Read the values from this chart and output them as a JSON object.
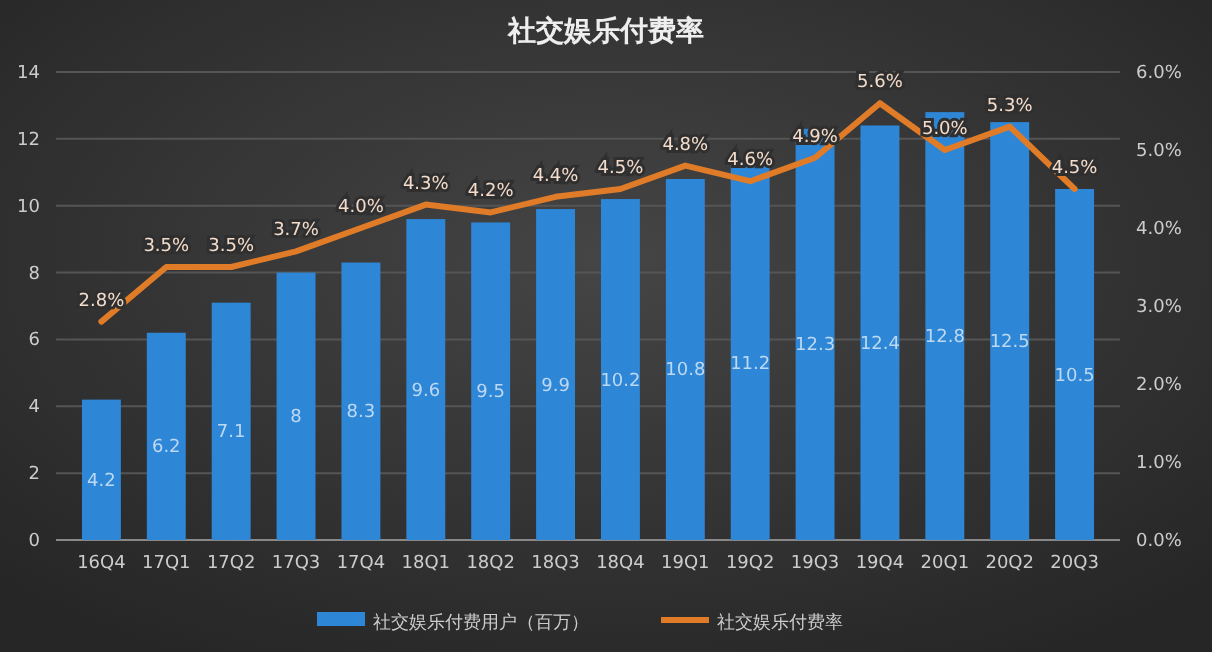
{
  "chart_data": {
    "type": "bar",
    "title": "社交娱乐付费率",
    "categories": [
      "16Q4",
      "17Q1",
      "17Q2",
      "17Q3",
      "17Q4",
      "18Q1",
      "18Q2",
      "18Q3",
      "18Q4",
      "19Q1",
      "19Q2",
      "19Q3",
      "19Q4",
      "20Q1",
      "20Q2",
      "20Q3"
    ],
    "series": [
      {
        "name": "社交娱乐付费用户（百万）",
        "color": "#2e86d6",
        "values": [
          4.2,
          6.2,
          7.1,
          8,
          8.3,
          9.6,
          9.5,
          9.9,
          10.2,
          10.8,
          11.2,
          12.3,
          12.4,
          12.8,
          12.5,
          10.5
        ],
        "value_labels": [
          "4.2",
          "6.2",
          "7.1",
          "8",
          "8.3",
          "9.6",
          "9.5",
          "9.9",
          "10.2",
          "10.8",
          "11.2",
          "12.3",
          "12.4",
          "12.8",
          "12.5",
          "10.5"
        ]
      },
      {
        "name": "社交娱乐付费率",
        "type": "line",
        "axis": "y2",
        "color": "#e07b28",
        "values": [
          2.8,
          3.5,
          3.5,
          3.7,
          4.0,
          4.3,
          4.2,
          4.4,
          4.5,
          4.8,
          4.6,
          4.9,
          5.6,
          5.0,
          5.3,
          4.5
        ],
        "value_labels": [
          "2.8%",
          "3.5%",
          "3.5%",
          "3.7%",
          "4.0%",
          "4.3%",
          "4.2%",
          "4.4%",
          "4.5%",
          "4.8%",
          "4.6%",
          "4.9%",
          "5.6%",
          "5.0%",
          "5.3%",
          "4.5%"
        ]
      }
    ],
    "ylim": [
      0,
      14
    ],
    "yticks": [
      0,
      2,
      4,
      6,
      8,
      10,
      12,
      14
    ],
    "y2lim": [
      0,
      6
    ],
    "y2ticks": [
      {
        "value": 0,
        "label": "0.0%"
      },
      {
        "value": 1,
        "label": "1.0%"
      },
      {
        "value": 2,
        "label": "2.0%"
      },
      {
        "value": 3,
        "label": "3.0%"
      },
      {
        "value": 4,
        "label": "4.0%"
      },
      {
        "value": 5,
        "label": "5.0%"
      },
      {
        "value": 6,
        "label": "6.0%"
      }
    ],
    "grid": "y",
    "legend": "bottom",
    "marker": "none",
    "line_style": "solid"
  }
}
